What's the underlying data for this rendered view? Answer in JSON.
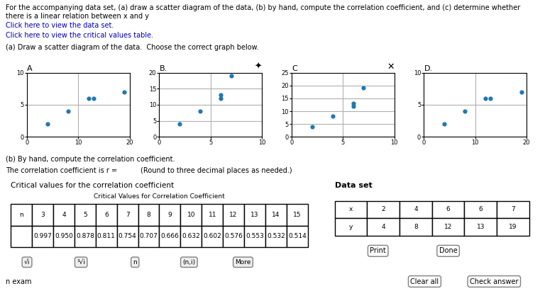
{
  "chart_data": [
    {
      "type": "scatter",
      "title": "A",
      "x": [
        4,
        8,
        12,
        13,
        19
      ],
      "values": [
        2,
        4,
        6,
        6,
        7
      ],
      "xlim": [
        0,
        20
      ],
      "xticks": [
        0,
        10,
        20
      ],
      "ylim": [
        0,
        10
      ],
      "yticks": [
        0,
        5,
        10
      ],
      "grid": true,
      "annotations": [
        "For the accompanying data set, (a) draw a scatter diagram of the data, (b) by hand, compute the correlation coefficient, and (c) determine whether there is a linear relation between x and y",
        "Click here to view the data set.",
        "Click here to view the critical values table.",
        "(a) Draw a scatter diagram of the data.  Choose the correct graph below.",
        "(b) By hand, compute the correlation coefficient.",
        "The correlation coefficient is r =",
        "(Round to three decimal places as needed.)",
        "n exam",
        "Clear all",
        "Check answer"
      ]
    },
    {
      "type": "scatter",
      "title": "B.",
      "x": [
        2,
        4,
        6,
        6,
        7
      ],
      "values": [
        4,
        8,
        12,
        13,
        19
      ],
      "xlim": [
        0,
        10
      ],
      "xticks": [
        0,
        5,
        10
      ],
      "ylim": [
        0,
        20
      ],
      "yticks": [
        0,
        5,
        10,
        15,
        20
      ],
      "grid": true,
      "annotations": [
        "✦"
      ]
    },
    {
      "type": "scatter",
      "title": "C",
      "x": [
        2,
        4,
        6,
        6,
        7
      ],
      "values": [
        4,
        8,
        12,
        13,
        19
      ],
      "xlim": [
        0,
        10
      ],
      "xticks": [
        0,
        5,
        10
      ],
      "ylim": [
        0,
        25
      ],
      "yticks": [
        0,
        5,
        10,
        15,
        20,
        25
      ],
      "grid": true,
      "annotations": [
        "✕"
      ]
    },
    {
      "type": "scatter",
      "title": "D.",
      "x": [
        4,
        8,
        12,
        13,
        19
      ],
      "values": [
        2,
        4,
        6,
        6,
        7
      ],
      "xlim": [
        0,
        20
      ],
      "xticks": [
        0,
        10,
        20
      ],
      "ylim": [
        0,
        10
      ],
      "yticks": [
        0,
        5,
        10
      ],
      "grid": true
    },
    {
      "type": "table",
      "title": "Critical values for the correlation coefficient",
      "subtitle": "Critical Values for Correlation Coefficient",
      "x_label": "n",
      "x": [
        3,
        4,
        5,
        6,
        7,
        8,
        9,
        10,
        11,
        12,
        13,
        14,
        15
      ],
      "values": [
        0.997,
        0.95,
        0.878,
        0.811,
        0.754,
        0.707,
        0.666,
        0.632,
        0.602,
        0.576,
        0.553,
        0.532,
        0.514
      ],
      "value_labels": [
        "0.997",
        "0.950",
        "0.878",
        "0.811",
        "0.754",
        "0.707",
        "0.666",
        "0.632",
        "0.602",
        "0.576",
        "0.553",
        "0.532",
        "0.514"
      ],
      "annotations": [
        "√i",
        "³√i",
        "n",
        "(n,i)",
        "More"
      ]
    },
    {
      "type": "table",
      "title": "Data set",
      "x_label": "x",
      "y_label": "y",
      "x": [
        2,
        4,
        6,
        6,
        7
      ],
      "values": [
        4,
        8,
        12,
        13,
        19
      ],
      "annotations": [
        "Print",
        "Done"
      ]
    }
  ]
}
